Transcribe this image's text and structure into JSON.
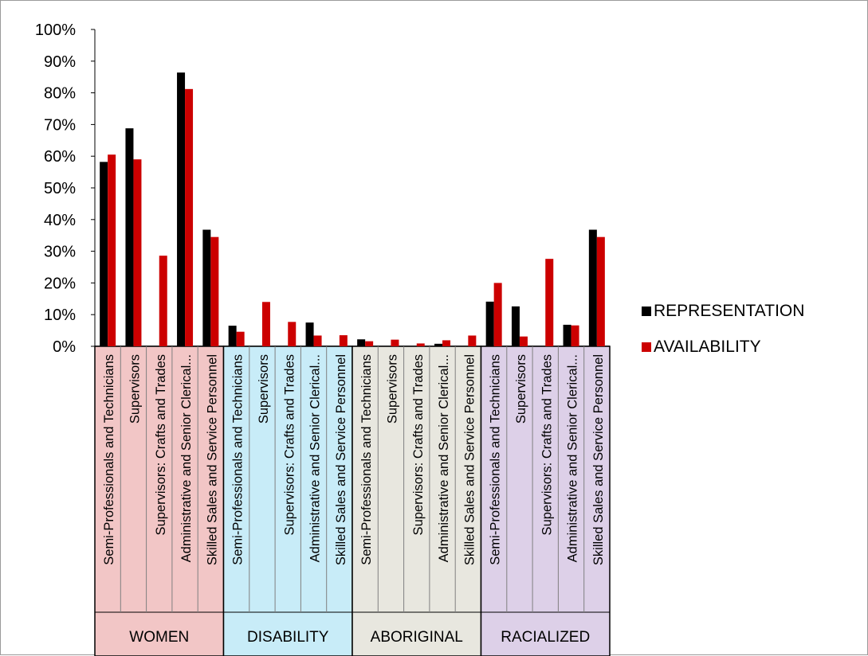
{
  "chart_data": {
    "type": "bar",
    "ylim": [
      0,
      1
    ],
    "yticks": [
      "0%",
      "10%",
      "20%",
      "30%",
      "40%",
      "50%",
      "60%",
      "70%",
      "80%",
      "90%",
      "100%"
    ],
    "grid": false,
    "legend_position": "right",
    "groups": [
      {
        "name": "WOMEN",
        "color": "#f2c6c6",
        "categories": [
          "Semi-Professionals and Technicians",
          "Supervisors",
          "Supervisors:  Crafts and Trades",
          "Administrative and Senior Clerical...",
          "Skilled Sales and Service Personnel"
        ]
      },
      {
        "name": "DISABILITY",
        "color": "#c8ecf8",
        "categories": [
          "Semi-Professionals and Technicians",
          "Supervisors",
          "Supervisors:  Crafts and Trades",
          "Administrative and Senior Clerical...",
          "Skilled Sales and Service Personnel"
        ]
      },
      {
        "name": "ABORIGINAL",
        "color": "#e8e7df",
        "categories": [
          "Semi-Professionals and Technicians",
          "Supervisors",
          "Supervisors:  Crafts and Trades",
          "Administrative and Senior Clerical...",
          "Skilled Sales and Service Personnel"
        ]
      },
      {
        "name": "RACIALIZED",
        "color": "#ddd0e8",
        "categories": [
          "Semi-Professionals and Technicians",
          "Supervisors",
          "Supervisors:  Crafts and Trades",
          "Administrative and Senior Clerical...",
          "Skilled Sales and Service Personnel"
        ]
      }
    ],
    "series": [
      {
        "name": "REPRESENTATION",
        "color": "#000000",
        "values": [
          0.582,
          0.688,
          0.0,
          0.864,
          0.368,
          0.065,
          0.0,
          0.0,
          0.075,
          0.0,
          0.022,
          0.0,
          0.0,
          0.008,
          0.0,
          0.141,
          0.126,
          0.0,
          0.068,
          0.368
        ]
      },
      {
        "name": "AVAILABILITY",
        "color": "#cc0000",
        "values": [
          0.605,
          0.59,
          0.286,
          0.812,
          0.345,
          0.046,
          0.14,
          0.077,
          0.034,
          0.035,
          0.016,
          0.021,
          0.009,
          0.019,
          0.034,
          0.2,
          0.031,
          0.276,
          0.066,
          0.345
        ]
      }
    ]
  }
}
